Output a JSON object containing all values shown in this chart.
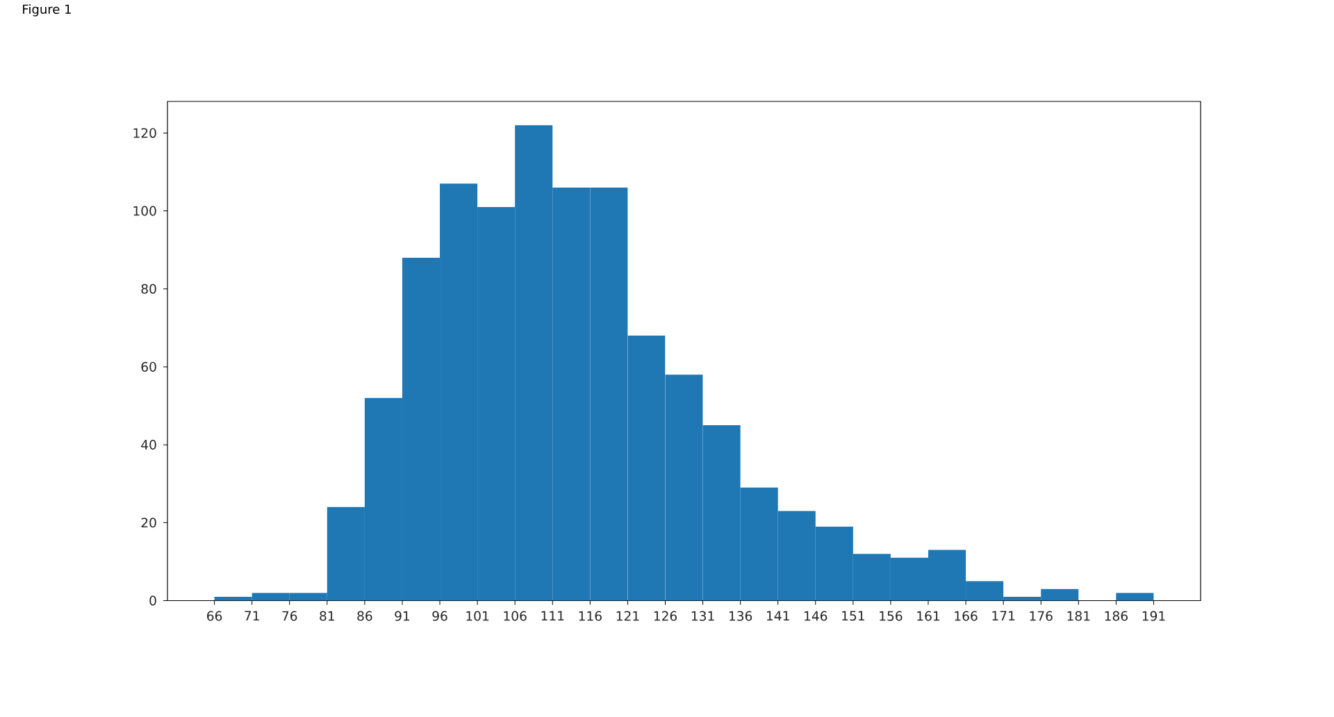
{
  "chart_data": {
    "type": "histogram",
    "title": "Figure 1",
    "bins": [
      66,
      71,
      76,
      81,
      86,
      91,
      96,
      101,
      106,
      111,
      116,
      121,
      126,
      131,
      136,
      141,
      146,
      151,
      156,
      161,
      166,
      171,
      176,
      181,
      186,
      191
    ],
    "values": [
      1,
      2,
      2,
      24,
      52,
      88,
      107,
      101,
      122,
      106,
      106,
      68,
      58,
      45,
      29,
      23,
      19,
      12,
      11,
      13,
      5,
      1,
      3,
      0,
      2
    ],
    "color": "#1f77b4",
    "xlim": [
      59.75,
      197.25
    ],
    "ylim": [
      0,
      128.1
    ],
    "xticks": [
      66,
      71,
      76,
      81,
      86,
      91,
      96,
      101,
      106,
      111,
      116,
      121,
      126,
      131,
      136,
      141,
      146,
      151,
      156,
      161,
      166,
      171,
      176,
      181,
      186,
      191
    ],
    "yticks": [
      0,
      20,
      40,
      60,
      80,
      100,
      120
    ]
  }
}
